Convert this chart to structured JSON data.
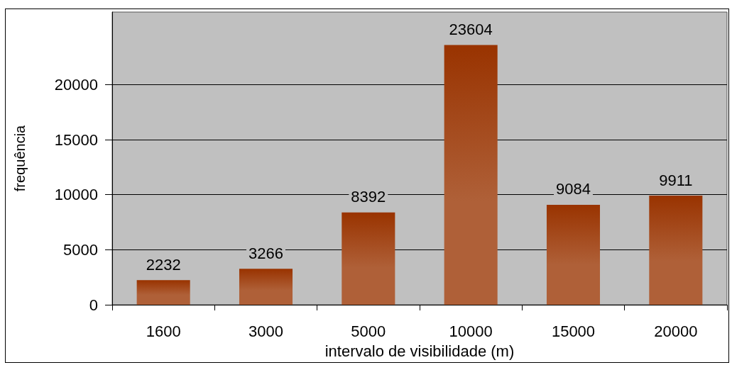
{
  "chart_data": {
    "type": "bar",
    "xlabel": "intervalo de visibilidade (m)",
    "ylabel": "frequência",
    "categories": [
      "1600",
      "3000",
      "5000",
      "10000",
      "15000",
      "20000"
    ],
    "values": [
      2232,
      3266,
      8392,
      23604,
      9084,
      9911
    ],
    "color": "#993300",
    "ylim": [
      0,
      26600
    ],
    "yticks": [
      0,
      5000,
      10000,
      15000,
      20000
    ],
    "grid": "y",
    "data_labels": true
  }
}
